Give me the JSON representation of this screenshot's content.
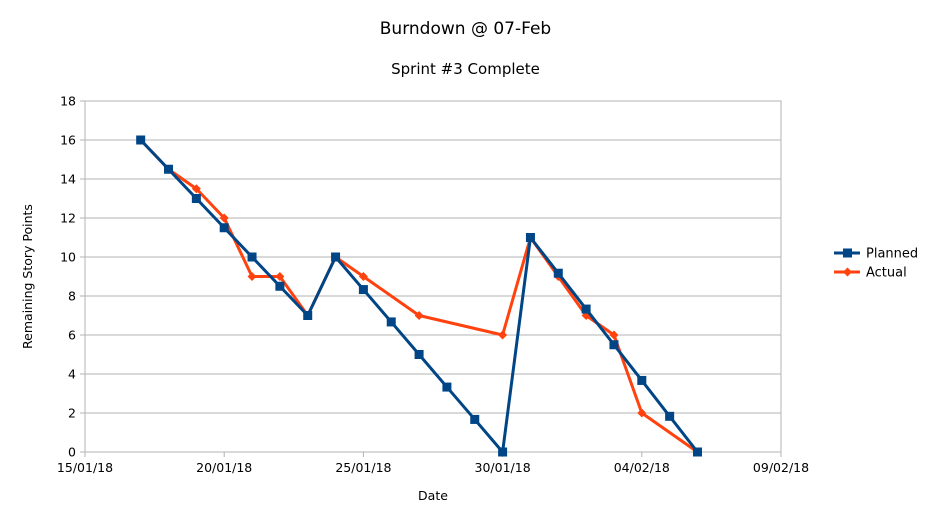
{
  "chart_data": {
    "type": "line",
    "title": "Burndown @ 07-Feb",
    "subtitle": "Sprint #3 Complete",
    "xlabel": "Date",
    "ylabel": "Remaining Story Points",
    "xlim": [
      "2018-01-15",
      "2018-02-09"
    ],
    "ylim": [
      0,
      18
    ],
    "yticks": [
      0,
      2,
      4,
      6,
      8,
      10,
      12,
      14,
      16,
      18
    ],
    "xticks": [
      {
        "date": "2018-01-15",
        "label": "15/01/18"
      },
      {
        "date": "2018-01-20",
        "label": "20/01/18"
      },
      {
        "date": "2018-01-25",
        "label": "25/01/18"
      },
      {
        "date": "2018-01-30",
        "label": "30/01/18"
      },
      {
        "date": "2018-02-04",
        "label": "04/02/18"
      },
      {
        "date": "2018-02-09",
        "label": "09/02/18"
      }
    ],
    "grid": true,
    "legend_position": "right",
    "series": [
      {
        "name": "Planned",
        "color": "#004586",
        "marker": "square",
        "points": [
          {
            "x": "2018-01-17",
            "y": 16
          },
          {
            "x": "2018-01-18",
            "y": 14.5
          },
          {
            "x": "2018-01-19",
            "y": 13
          },
          {
            "x": "2018-01-20",
            "y": 11.5
          },
          {
            "x": "2018-01-21",
            "y": 10
          },
          {
            "x": "2018-01-22",
            "y": 8.5
          },
          {
            "x": "2018-01-23",
            "y": 7
          },
          {
            "x": "2018-01-24",
            "y": 10
          },
          {
            "x": "2018-01-25",
            "y": 8.33
          },
          {
            "x": "2018-01-26",
            "y": 6.67
          },
          {
            "x": "2018-01-27",
            "y": 5
          },
          {
            "x": "2018-01-28",
            "y": 3.33
          },
          {
            "x": "2018-01-29",
            "y": 1.67
          },
          {
            "x": "2018-01-30",
            "y": 0
          },
          {
            "x": "2018-01-31",
            "y": 11
          },
          {
            "x": "2018-02-01",
            "y": 9.17
          },
          {
            "x": "2018-02-02",
            "y": 7.33
          },
          {
            "x": "2018-02-03",
            "y": 5.5
          },
          {
            "x": "2018-02-04",
            "y": 3.67
          },
          {
            "x": "2018-02-05",
            "y": 1.83
          },
          {
            "x": "2018-02-06",
            "y": 0
          }
        ]
      },
      {
        "name": "Actual",
        "color": "#ff420e",
        "marker": "diamond",
        "points": [
          {
            "x": "2018-01-17",
            "y": 16
          },
          {
            "x": "2018-01-18",
            "y": 14.5
          },
          {
            "x": "2018-01-19",
            "y": 13.5
          },
          {
            "x": "2018-01-20",
            "y": 12
          },
          {
            "x": "2018-01-21",
            "y": 9
          },
          {
            "x": "2018-01-22",
            "y": 9
          },
          {
            "x": "2018-01-23",
            "y": 7
          },
          {
            "x": "2018-01-24",
            "y": 10
          },
          {
            "x": "2018-01-25",
            "y": 9
          },
          {
            "x": "2018-01-27",
            "y": 7
          },
          {
            "x": "2018-01-30",
            "y": 6
          },
          {
            "x": "2018-01-31",
            "y": 11
          },
          {
            "x": "2018-02-01",
            "y": 9
          },
          {
            "x": "2018-02-02",
            "y": 7
          },
          {
            "x": "2018-02-03",
            "y": 6
          },
          {
            "x": "2018-02-04",
            "y": 2
          },
          {
            "x": "2018-02-06",
            "y": 0
          }
        ]
      }
    ]
  }
}
